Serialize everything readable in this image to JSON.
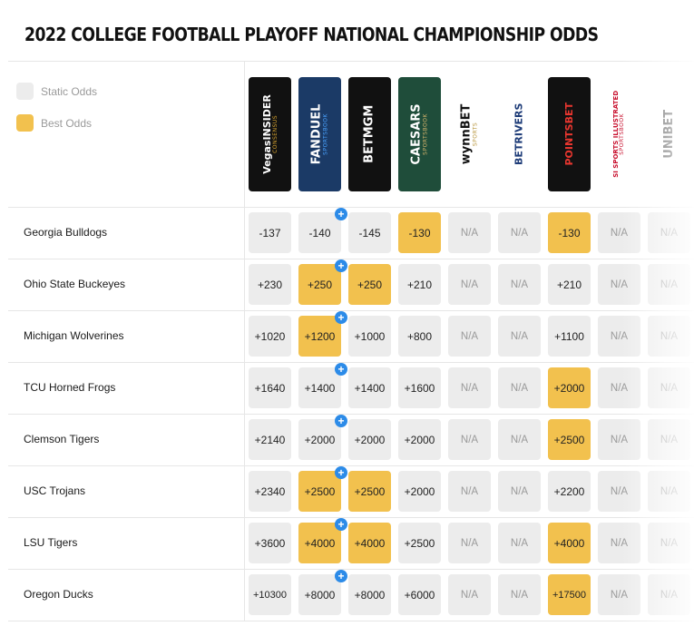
{
  "title": "2022 COLLEGE FOOTBALL PLAYOFF NATIONAL CHAMPIONSHIP ODDS",
  "legend": [
    {
      "label": "Static Odds",
      "color": "#ececec"
    },
    {
      "label": "Best Odds",
      "color": "#f2c14e"
    }
  ],
  "books": [
    {
      "name": "VegasInsider Consensus",
      "line1": "VegasINSIDER",
      "line2": "CONSENSUS",
      "bg": "#111111",
      "fg": "#ffffff",
      "accent": "#d9a531"
    },
    {
      "name": "FanDuel Sportsbook",
      "line1": "FANDUEL",
      "line2": "SPORTSBOOK",
      "bg": "#1b3a66",
      "fg": "#ffffff",
      "accent": "#4aa3ff"
    },
    {
      "name": "BetMGM",
      "line1": "BETMGM",
      "line2": "",
      "bg": "#111111",
      "fg": "#ffffff",
      "accent": "#c9a86a"
    },
    {
      "name": "Caesars Sportsbook",
      "line1": "CAESARS",
      "line2": "SPORTSBOOK",
      "bg": "#1f4d3a",
      "fg": "#ffffff",
      "accent": "#d7b56d"
    },
    {
      "name": "WynnBet",
      "line1": "wynnBET",
      "line2": "SPORTS",
      "bg": "#ffffff",
      "fg": "#111111",
      "accent": "#b8963e"
    },
    {
      "name": "BetRivers",
      "line1": "BETRIVERS",
      "line2": "",
      "bg": "#ffffff",
      "fg": "#1e3c78",
      "accent": "#f0b323"
    },
    {
      "name": "PointsBet",
      "line1": "POINTSBET",
      "line2": "",
      "bg": "#111111",
      "fg": "#e8362f",
      "accent": "#e8362f"
    },
    {
      "name": "SI Sportsbook",
      "line1": "SI SPORTS ILLUSTRATED",
      "line2": "SPORTSBOOK",
      "bg": "#ffffff",
      "fg": "#c8102e",
      "accent": "#c8102e"
    },
    {
      "name": "Unibet",
      "line1": "UNIBET",
      "line2": "",
      "bg": "#ffffff",
      "fg": "#2a2a2a",
      "accent": "#147b45"
    }
  ],
  "rows": [
    {
      "team": "Georgia Bulldogs",
      "odds": [
        "-137",
        "-140",
        "-145",
        "-130",
        "N/A",
        "N/A",
        "-130",
        "N/A",
        "N/A"
      ],
      "best": [
        3,
        6
      ]
    },
    {
      "team": "Ohio State Buckeyes",
      "odds": [
        "+230",
        "+250",
        "+250",
        "+210",
        "N/A",
        "N/A",
        "+210",
        "N/A",
        "N/A"
      ],
      "best": [
        1,
        2
      ]
    },
    {
      "team": "Michigan Wolverines",
      "odds": [
        "+1020",
        "+1200",
        "+1000",
        "+800",
        "N/A",
        "N/A",
        "+1100",
        "N/A",
        "N/A"
      ],
      "best": [
        1
      ]
    },
    {
      "team": "TCU Horned Frogs",
      "odds": [
        "+1640",
        "+1400",
        "+1400",
        "+1600",
        "N/A",
        "N/A",
        "+2000",
        "N/A",
        "N/A"
      ],
      "best": [
        6
      ]
    },
    {
      "team": "Clemson Tigers",
      "odds": [
        "+2140",
        "+2000",
        "+2000",
        "+2000",
        "N/A",
        "N/A",
        "+2500",
        "N/A",
        "N/A"
      ],
      "best": [
        6
      ]
    },
    {
      "team": "USC Trojans",
      "odds": [
        "+2340",
        "+2500",
        "+2500",
        "+2000",
        "N/A",
        "N/A",
        "+2200",
        "N/A",
        "N/A"
      ],
      "best": [
        1,
        2
      ]
    },
    {
      "team": "LSU Tigers",
      "odds": [
        "+3600",
        "+4000",
        "+4000",
        "+2500",
        "N/A",
        "N/A",
        "+4000",
        "N/A",
        "N/A"
      ],
      "best": [
        1,
        2,
        6
      ]
    },
    {
      "team": "Oregon Ducks",
      "odds": [
        "+10300",
        "+8000",
        "+8000",
        "+6000",
        "N/A",
        "N/A",
        "+17500",
        "N/A",
        "N/A"
      ],
      "best": [
        6
      ]
    }
  ],
  "promo_badge": {
    "symbol": "+",
    "color": "#2c8be8",
    "book_index": 1
  }
}
